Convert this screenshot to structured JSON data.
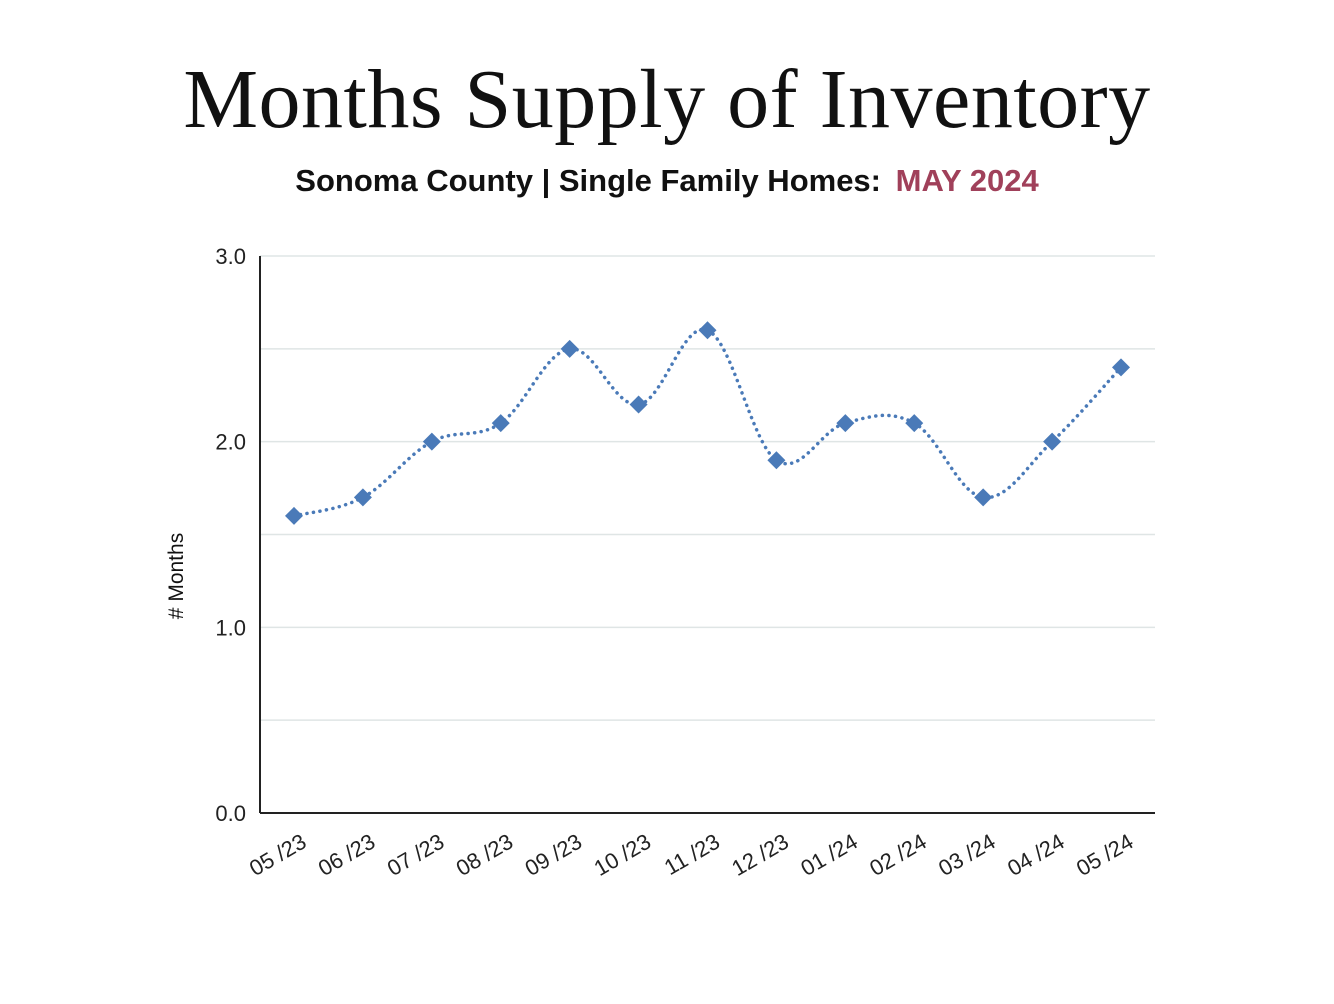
{
  "header": {
    "title": "Months Supply of Inventory",
    "subtitle_main": "Sonoma County | Single Family Homes:",
    "subtitle_date": "MAY 2024"
  },
  "colors": {
    "accent": "#a0405a",
    "series": "#4a7ab8",
    "grid": "#dfe5e5",
    "axis": "#222222"
  },
  "chart_data": {
    "type": "line",
    "title": "Months Supply of Inventory",
    "subtitle": "Sonoma County | Single Family Homes: MAY 2024",
    "xlabel": "",
    "ylabel": "# Months",
    "categories": [
      "05 /23",
      "06 /23",
      "07 /23",
      "08 /23",
      "09 /23",
      "10 /23",
      "11 /23",
      "12 /23",
      "01 /24",
      "02 /24",
      "03 /24",
      "04 /24",
      "05 /24"
    ],
    "values": [
      1.6,
      1.7,
      2.0,
      2.1,
      2.5,
      2.2,
      2.6,
      1.9,
      2.1,
      2.1,
      1.7,
      2.0,
      2.4
    ],
    "ylim": [
      0,
      3.0
    ],
    "yticks": [
      "0.0",
      "1.0",
      "2.0",
      "3.0"
    ],
    "grid": true,
    "line_style": "dotted-smooth",
    "marker": "diamond"
  }
}
